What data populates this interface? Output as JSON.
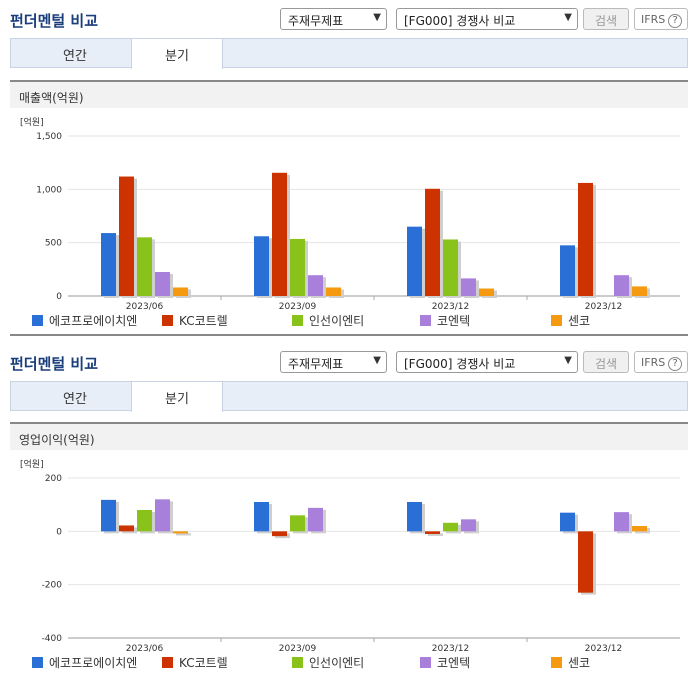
{
  "panels": [
    {
      "title": "펀더멘털 비교",
      "select1": "주재무제표",
      "select2": "[FG000] 경쟁사 비교",
      "search_label": "검색",
      "ifrs_label": "IFRS",
      "help_icon": "?",
      "tabs": [
        {
          "label": "연간",
          "active": false
        },
        {
          "label": "분기",
          "active": true
        }
      ],
      "chart_title": "매출액(억원)"
    },
    {
      "title": "펀더멘털 비교",
      "select1": "주재무제표",
      "select2": "[FG000] 경쟁사 비교",
      "search_label": "검색",
      "ifrs_label": "IFRS",
      "help_icon": "?",
      "tabs": [
        {
          "label": "연간",
          "active": false
        },
        {
          "label": "분기",
          "active": true
        }
      ],
      "chart_title": "영업이익(억원)"
    }
  ],
  "colors": {
    "series": [
      "#2a6fd6",
      "#cc3300",
      "#88c21a",
      "#a97fdc",
      "#f59a10"
    ],
    "title": "#1a3d7c"
  },
  "chart_data": [
    {
      "type": "bar",
      "title": "매출액(억원)",
      "unit_label": "[억원]",
      "categories": [
        "2023/06",
        "2023/09",
        "2023/12",
        "2023/12"
      ],
      "ylim": [
        0,
        1500
      ],
      "yticks": [
        0,
        500,
        1000,
        1500
      ],
      "ytick_labels": [
        "0",
        "500",
        "1,000",
        "1,500"
      ],
      "grid": true,
      "legend_position": "bottom",
      "series": [
        {
          "name": "에코프로에이치엔",
          "values": [
            590,
            560,
            650,
            475
          ]
        },
        {
          "name": "KC코트렐",
          "values": [
            1120,
            1155,
            1005,
            1060
          ]
        },
        {
          "name": "인선이엔티",
          "values": [
            550,
            535,
            530,
            null
          ]
        },
        {
          "name": "코엔텍",
          "values": [
            225,
            195,
            165,
            195
          ]
        },
        {
          "name": "센코",
          "values": [
            80,
            80,
            70,
            90
          ]
        }
      ]
    },
    {
      "type": "bar",
      "title": "영업이익(억원)",
      "unit_label": "[억원]",
      "categories": [
        "2023/06",
        "2023/09",
        "2023/12",
        "2023/12"
      ],
      "ylim": [
        -400,
        200
      ],
      "yticks": [
        -400,
        -200,
        0,
        200
      ],
      "ytick_labels": [
        "-400",
        "-200",
        "0",
        "200"
      ],
      "grid": true,
      "legend_position": "bottom",
      "series": [
        {
          "name": "에코프로에이치엔",
          "values": [
            118,
            110,
            110,
            70
          ]
        },
        {
          "name": "KC코트렐",
          "values": [
            22,
            -18,
            -10,
            -230
          ]
        },
        {
          "name": "인선이엔티",
          "values": [
            80,
            60,
            32,
            null
          ]
        },
        {
          "name": "코엔텍",
          "values": [
            120,
            88,
            45,
            72
          ]
        },
        {
          "name": "센코",
          "values": [
            -8,
            null,
            null,
            20
          ]
        }
      ]
    }
  ]
}
